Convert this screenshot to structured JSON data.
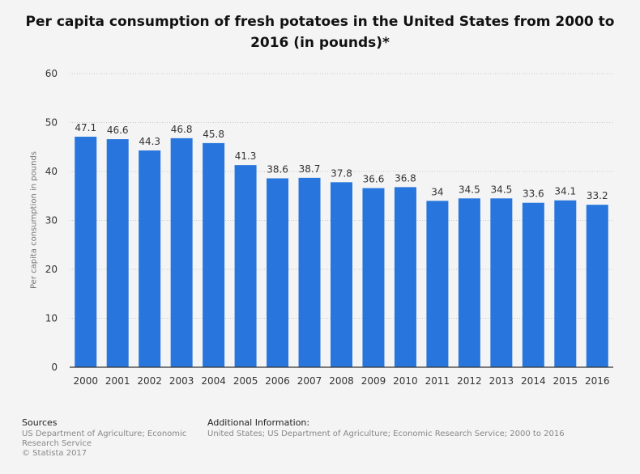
{
  "chart_data": {
    "type": "bar",
    "title": "Per capita consumption of fresh potatoes in the United States from 2000 to 2016 (in pounds)*",
    "xlabel": "",
    "ylabel": "Per capita consumption in pounds",
    "categories": [
      "2000",
      "2001",
      "2002",
      "2003",
      "2004",
      "2005",
      "2006",
      "2007",
      "2008",
      "2009",
      "2010",
      "2011",
      "2012",
      "2013",
      "2014",
      "2015",
      "2016"
    ],
    "values": [
      47.1,
      46.6,
      44.3,
      46.8,
      45.8,
      41.3,
      38.6,
      38.7,
      37.8,
      36.6,
      36.8,
      34,
      34.5,
      34.5,
      33.6,
      34.1,
      33.2
    ],
    "value_labels": [
      "47.1",
      "46.6",
      "44.3",
      "46.8",
      "45.8",
      "41.3",
      "38.6",
      "38.7",
      "37.8",
      "36.6",
      "36.8",
      "34",
      "34.5",
      "34.5",
      "33.6",
      "34.1",
      "33.2"
    ],
    "ylim": [
      0,
      60
    ],
    "yticks": [
      0,
      10,
      20,
      30,
      40,
      50,
      60
    ],
    "grid": true,
    "legend": "none",
    "bar_color": "#2876dd"
  },
  "footer": {
    "sources_heading": "Sources",
    "sources_line1": "US Department of Agriculture; Economic",
    "sources_line2": "Research Service",
    "sources_line3": "© Statista 2017",
    "additional_heading": "Additional Information:",
    "additional_text": "United States; US Department of Agriculture; Economic Research Service; 2000 to 2016"
  }
}
